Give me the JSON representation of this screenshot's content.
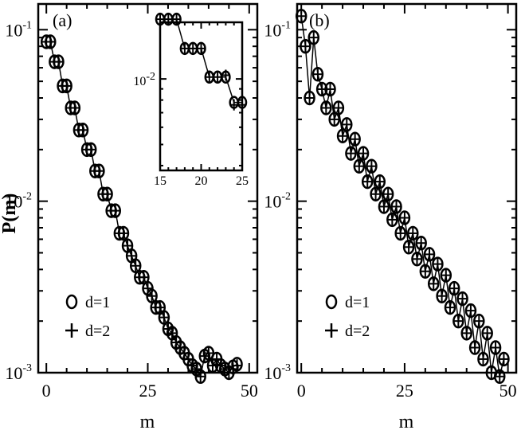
{
  "figure": {
    "ylabel": "P(m)",
    "legend": [
      {
        "marker": "circle",
        "label": "d=1"
      },
      {
        "marker": "plus",
        "label": "d=2"
      }
    ]
  },
  "chart_data": [
    {
      "type": "scatter",
      "panel_label": "(a)",
      "xlabel": "m",
      "ylabel": "P(m)",
      "xlim": [
        -2,
        52
      ],
      "ylim_log10": [
        -3,
        -0.85
      ],
      "yscale": "log",
      "x_ticks": [
        "0",
        "25",
        "50"
      ],
      "y_ticks": [
        {
          "base": "10",
          "exp": "-1",
          "value": 0.1
        },
        {
          "base": "10",
          "exp": "-2",
          "value": 0.01
        },
        {
          "base": "10",
          "exp": "-3",
          "value": 0.001
        }
      ],
      "line": true,
      "legend_position": "bottom-left",
      "series": [
        {
          "name": "d=1",
          "marker": "circle",
          "x": [
            0,
            1,
            2,
            3,
            4,
            5,
            6,
            7,
            8,
            9,
            10,
            11,
            12,
            13,
            14,
            15,
            16,
            17,
            18,
            19,
            20,
            21,
            22,
            23,
            24,
            25,
            26,
            27,
            28,
            29,
            30,
            31,
            32,
            33,
            34,
            35,
            36,
            37,
            38,
            39,
            40,
            41,
            42,
            43,
            44,
            45,
            46,
            47
          ],
          "y": [
            0.085,
            0.085,
            0.065,
            0.065,
            0.047,
            0.047,
            0.035,
            0.035,
            0.026,
            0.026,
            0.02,
            0.02,
            0.015,
            0.015,
            0.011,
            0.011,
            0.0088,
            0.0088,
            0.0065,
            0.0065,
            0.0055,
            0.0048,
            0.0042,
            0.0036,
            0.0036,
            0.0031,
            0.0028,
            0.0024,
            0.0024,
            0.0021,
            0.0018,
            0.0017,
            0.0015,
            0.0014,
            0.0013,
            0.0012,
            0.0011,
            0.00105,
            0.00095,
            0.00125,
            0.0013,
            0.0011,
            0.0012,
            0.0011,
            0.00105,
            0.001,
            0.00108,
            0.00112
          ]
        },
        {
          "name": "d=2",
          "marker": "plus",
          "x": [
            0,
            1,
            2,
            3,
            4,
            5,
            6,
            7,
            8,
            9,
            10,
            11,
            12,
            13,
            14,
            15,
            16,
            17,
            18,
            19,
            20,
            21,
            22,
            23,
            24,
            25,
            26,
            27,
            28,
            29,
            30,
            31,
            32,
            33,
            34,
            35,
            36,
            37,
            38,
            39,
            40,
            41,
            42,
            43,
            44,
            45,
            46,
            47
          ],
          "y": [
            0.085,
            0.085,
            0.065,
            0.065,
            0.047,
            0.047,
            0.035,
            0.035,
            0.026,
            0.026,
            0.02,
            0.02,
            0.015,
            0.015,
            0.011,
            0.011,
            0.0088,
            0.0088,
            0.0065,
            0.0065,
            0.0055,
            0.0048,
            0.0042,
            0.0036,
            0.0036,
            0.0031,
            0.0028,
            0.0024,
            0.0024,
            0.0021,
            0.0018,
            0.0017,
            0.0015,
            0.0014,
            0.0013,
            0.0012,
            0.0011,
            0.00105,
            0.00095,
            0.00125,
            0.0013,
            0.0011,
            0.0012,
            0.0011,
            0.00105,
            0.001,
            0.00105,
            0.0011
          ]
        }
      ],
      "inset": {
        "xlim": [
          15,
          25
        ],
        "ylim_log10": [
          -2.42,
          -1.74
        ],
        "x_ticks": [
          "15",
          "20",
          "25"
        ],
        "y_ticks": [
          {
            "base": "10",
            "exp": "-2",
            "value": 0.01
          }
        ],
        "series": [
          {
            "name": "d=1",
            "marker": "circle",
            "x": [
              15,
              16,
              17,
              18,
              19,
              20,
              21,
              22,
              23,
              24,
              25
            ],
            "y": [
              0.0188,
              0.0188,
              0.0188,
              0.0138,
              0.0138,
              0.0138,
              0.0102,
              0.0102,
              0.0102,
              0.0078,
              0.0078
            ]
          },
          {
            "name": "d=2",
            "marker": "plus",
            "x": [
              15,
              16,
              17,
              18,
              19,
              20,
              21,
              22,
              23,
              24,
              25
            ],
            "y": [
              0.0188,
              0.0188,
              0.0188,
              0.0138,
              0.0138,
              0.0138,
              0.0102,
              0.0102,
              0.0104,
              0.0076,
              0.0076
            ]
          }
        ]
      }
    },
    {
      "type": "scatter",
      "panel_label": "(b)",
      "xlabel": "m",
      "ylabel": "",
      "xlim": [
        -1,
        52
      ],
      "ylim_log10": [
        -3,
        -0.85
      ],
      "yscale": "log",
      "x_ticks": [
        "0",
        "25",
        "50"
      ],
      "y_ticks": [
        {
          "base": "10",
          "exp": "-1",
          "value": 0.1
        },
        {
          "base": "10",
          "exp": "-2",
          "value": 0.01
        },
        {
          "base": "10",
          "exp": "-3",
          "value": 0.001
        }
      ],
      "line": true,
      "legend_position": "bottom-left",
      "series": [
        {
          "name": "d=1",
          "marker": "circle",
          "x": [
            0,
            1,
            2,
            3,
            4,
            5,
            6,
            7,
            8,
            9,
            10,
            11,
            12,
            13,
            14,
            15,
            16,
            17,
            18,
            19,
            20,
            21,
            22,
            23,
            24,
            25,
            26,
            27,
            28,
            29,
            30,
            31,
            32,
            33,
            34,
            35,
            36,
            37,
            38,
            39,
            40,
            41,
            42,
            43,
            44,
            45,
            46,
            47,
            48,
            49
          ],
          "y": [
            0.12,
            0.08,
            0.04,
            0.09,
            0.055,
            0.045,
            0.035,
            0.045,
            0.03,
            0.035,
            0.024,
            0.028,
            0.019,
            0.023,
            0.016,
            0.019,
            0.013,
            0.016,
            0.011,
            0.013,
            0.0093,
            0.011,
            0.0078,
            0.0093,
            0.0065,
            0.008,
            0.0054,
            0.0065,
            0.0046,
            0.0057,
            0.0039,
            0.0049,
            0.0033,
            0.0043,
            0.0028,
            0.0037,
            0.0024,
            0.0031,
            0.002,
            0.0027,
            0.0017,
            0.0023,
            0.0014,
            0.002,
            0.0012,
            0.0017,
            0.001,
            0.0014,
            0.00095,
            0.0012
          ]
        },
        {
          "name": "d=2",
          "marker": "plus",
          "x": [
            0,
            1,
            2,
            3,
            4,
            5,
            6,
            7,
            8,
            9,
            10,
            11,
            12,
            13,
            14,
            15,
            16,
            17,
            18,
            19,
            20,
            21,
            22,
            23,
            24,
            25,
            26,
            27,
            28,
            29,
            30,
            31,
            32,
            33,
            34,
            35,
            36,
            37,
            38,
            39,
            40,
            41,
            42,
            43,
            44,
            45,
            46,
            47,
            48,
            49
          ],
          "y": [
            0.12,
            0.08,
            0.04,
            0.09,
            0.055,
            0.045,
            0.035,
            0.045,
            0.03,
            0.035,
            0.024,
            0.028,
            0.019,
            0.023,
            0.016,
            0.019,
            0.013,
            0.016,
            0.011,
            0.013,
            0.0093,
            0.011,
            0.0078,
            0.0093,
            0.0065,
            0.008,
            0.0054,
            0.0065,
            0.0046,
            0.0057,
            0.0039,
            0.0049,
            0.0033,
            0.0043,
            0.0028,
            0.0037,
            0.0024,
            0.0031,
            0.002,
            0.0027,
            0.0017,
            0.0023,
            0.0014,
            0.002,
            0.0012,
            0.0017,
            0.001,
            0.0014,
            0.00095,
            0.0012
          ]
        }
      ]
    }
  ]
}
